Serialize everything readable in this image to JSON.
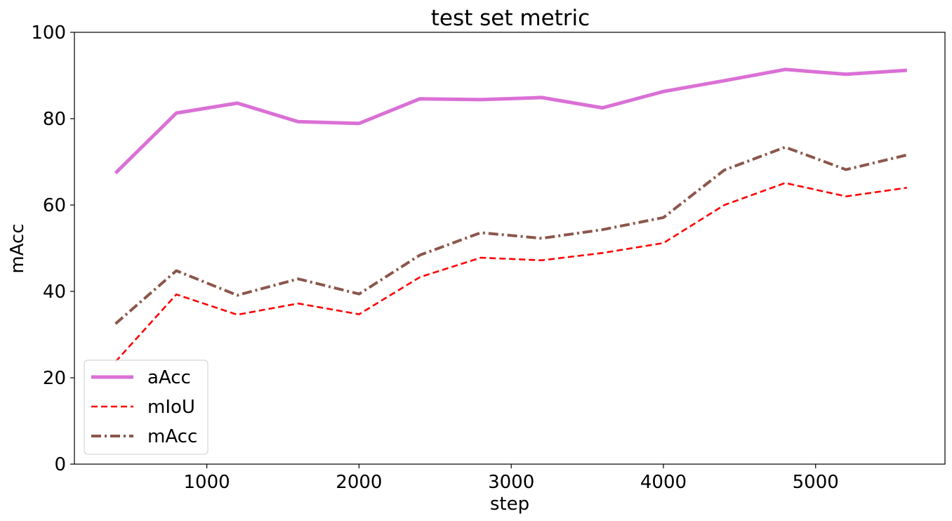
{
  "chart_data": {
    "type": "line",
    "title": "test set metric",
    "xlabel": "step",
    "ylabel": "mAcc",
    "xlim": [
      130,
      5850
    ],
    "ylim": [
      0,
      100
    ],
    "xticks": [
      1000,
      2000,
      3000,
      4000,
      5000
    ],
    "yticks": [
      0,
      20,
      40,
      60,
      80,
      100
    ],
    "grid": false,
    "legend_position": "lower-left",
    "x": [
      400,
      800,
      1200,
      1600,
      2000,
      2400,
      2800,
      3200,
      3600,
      4000,
      4400,
      4800,
      5200,
      5600
    ],
    "series": [
      {
        "name": "aAcc",
        "color": "#da70d6",
        "style": "solid",
        "values": [
          67.4,
          81.3,
          83.6,
          79.3,
          78.9,
          84.6,
          84.4,
          84.9,
          82.5,
          86.3,
          88.8,
          91.4,
          90.3,
          91.2
        ]
      },
      {
        "name": "mIoU",
        "color": "#ff0000",
        "style": "dashed",
        "values": [
          23.7,
          39.3,
          34.6,
          37.2,
          34.7,
          43.3,
          47.8,
          47.2,
          48.9,
          51.2,
          60.0,
          65.1,
          62.0,
          64.0
        ]
      },
      {
        "name": "mAcc",
        "color": "#8c564b",
        "style": "dashdot",
        "values": [
          32.5,
          44.8,
          39.1,
          42.9,
          39.4,
          48.4,
          53.6,
          52.3,
          54.3,
          57.1,
          68.1,
          73.4,
          68.2,
          71.6
        ]
      }
    ]
  }
}
